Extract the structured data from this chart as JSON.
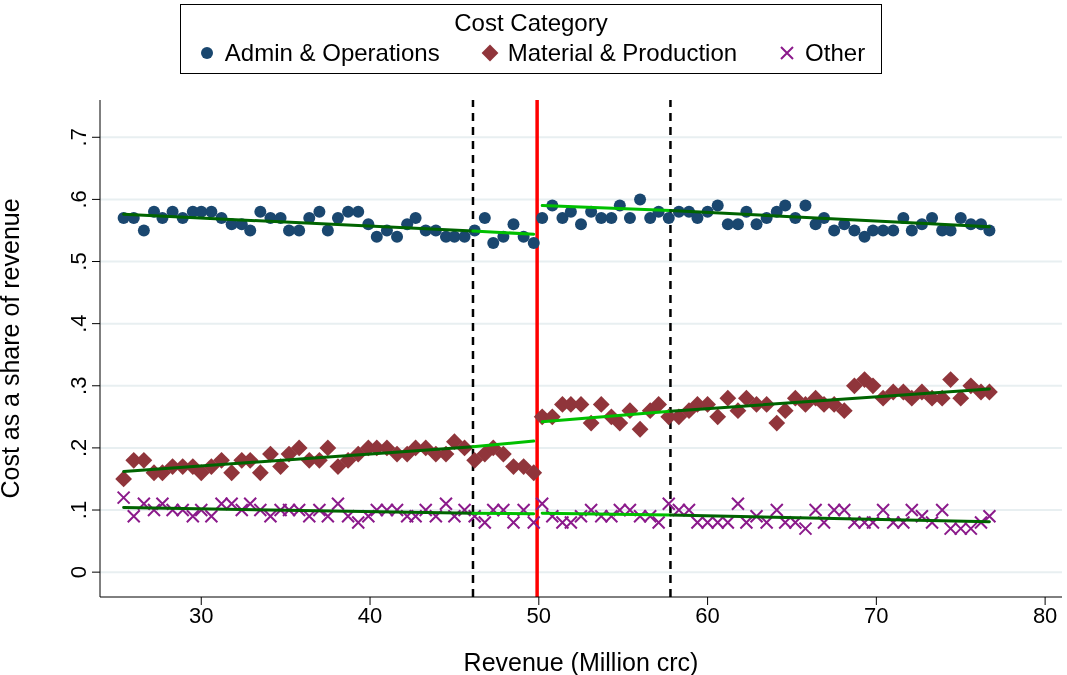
{
  "chart_data": {
    "type": "scatter",
    "xlabel": "Revenue (Million crc)",
    "ylabel": "Cost as a share of revenue",
    "legend_title": "Cost Category",
    "legend": "top",
    "grid": "y",
    "xlim": [
      24,
      81
    ],
    "xticks": [
      30,
      40,
      50,
      60,
      70,
      80
    ],
    "ylim": [
      -0.04,
      0.76
    ],
    "yticks": [
      {
        "value": 0,
        "label": "0"
      },
      {
        "value": 0.1,
        "label": ".1"
      },
      {
        "value": 0.2,
        "label": ".2"
      },
      {
        "value": 0.3,
        "label": ".3"
      },
      {
        "value": 0.4,
        "label": ".4"
      },
      {
        "value": 0.5,
        "label": ".5"
      },
      {
        "value": 0.6,
        "label": ".6"
      },
      {
        "value": 0.7,
        "label": ".7"
      }
    ],
    "x": [
      25.4,
      26.0,
      26.6,
      27.2,
      27.7,
      28.3,
      28.9,
      29.5,
      30.0,
      30.6,
      31.2,
      31.8,
      32.4,
      32.9,
      33.5,
      34.1,
      34.7,
      35.2,
      35.8,
      36.4,
      37.0,
      37.5,
      38.1,
      38.7,
      39.3,
      39.9,
      40.4,
      41.0,
      41.6,
      42.2,
      42.7,
      43.3,
      43.9,
      44.5,
      45.0,
      45.6,
      46.2,
      46.8,
      47.3,
      47.9,
      48.5,
      49.1,
      49.7,
      50.2,
      50.8,
      51.4,
      51.9,
      52.5,
      53.1,
      53.7,
      54.3,
      54.8,
      55.4,
      56.0,
      56.6,
      57.1,
      57.7,
      58.3,
      58.9,
      59.4,
      60.0,
      60.6,
      61.2,
      61.8,
      62.3,
      62.9,
      63.5,
      64.1,
      64.6,
      65.2,
      65.8,
      66.4,
      66.9,
      67.5,
      68.1,
      68.7,
      69.3,
      69.8,
      70.4,
      71.0,
      71.6,
      72.1,
      72.7,
      73.3,
      73.9,
      74.4,
      75.0,
      75.6,
      76.2,
      76.7
    ],
    "ref_lines": [
      {
        "axis": "x",
        "value": 46.1,
        "color": "#000000",
        "line_style": "dashed"
      },
      {
        "axis": "x",
        "value": 57.8,
        "color": "#000000",
        "line_style": "dashed"
      },
      {
        "axis": "x",
        "value": 49.9,
        "color": "#ff0000",
        "line_style": "solid"
      }
    ],
    "series": [
      {
        "name": "Admin & Operations",
        "color": "#1a476f",
        "marker": "circle",
        "values": [
          0.57,
          0.57,
          0.55,
          0.58,
          0.57,
          0.58,
          0.57,
          0.58,
          0.58,
          0.58,
          0.57,
          0.56,
          0.56,
          0.55,
          0.58,
          0.57,
          0.57,
          0.55,
          0.55,
          0.57,
          0.58,
          0.55,
          0.57,
          0.58,
          0.58,
          0.56,
          0.54,
          0.55,
          0.54,
          0.56,
          0.57,
          0.55,
          0.55,
          0.54,
          0.54,
          0.54,
          0.55,
          0.57,
          0.53,
          0.54,
          0.56,
          0.54,
          0.53,
          0.57,
          0.59,
          0.57,
          0.58,
          0.56,
          0.58,
          0.57,
          0.57,
          0.59,
          0.57,
          0.6,
          0.57,
          0.58,
          0.57,
          0.58,
          0.58,
          0.57,
          0.58,
          0.59,
          0.56,
          0.56,
          0.58,
          0.56,
          0.57,
          0.58,
          0.59,
          0.57,
          0.59,
          0.56,
          0.57,
          0.55,
          0.56,
          0.55,
          0.54,
          0.55,
          0.55,
          0.55,
          0.57,
          0.55,
          0.56,
          0.57,
          0.55,
          0.55,
          0.57,
          0.56,
          0.56,
          0.55
        ]
      },
      {
        "name": "Material & Production",
        "color": "#90353b",
        "marker": "diamond",
        "values": [
          0.15,
          0.18,
          0.18,
          0.16,
          0.16,
          0.17,
          0.17,
          0.17,
          0.16,
          0.17,
          0.18,
          0.16,
          0.18,
          0.18,
          0.16,
          0.19,
          0.17,
          0.19,
          0.2,
          0.18,
          0.18,
          0.2,
          0.17,
          0.18,
          0.19,
          0.2,
          0.2,
          0.2,
          0.19,
          0.19,
          0.2,
          0.2,
          0.19,
          0.19,
          0.21,
          0.2,
          0.18,
          0.19,
          0.2,
          0.19,
          0.17,
          0.17,
          0.16,
          0.25,
          0.25,
          0.27,
          0.27,
          0.27,
          0.24,
          0.27,
          0.25,
          0.24,
          0.26,
          0.23,
          0.26,
          0.27,
          0.25,
          0.25,
          0.26,
          0.27,
          0.27,
          0.25,
          0.28,
          0.26,
          0.28,
          0.27,
          0.27,
          0.24,
          0.26,
          0.28,
          0.27,
          0.28,
          0.27,
          0.27,
          0.26,
          0.3,
          0.31,
          0.3,
          0.28,
          0.29,
          0.29,
          0.28,
          0.29,
          0.28,
          0.28,
          0.31,
          0.28,
          0.3,
          0.29,
          0.29
        ]
      },
      {
        "name": "Other",
        "color": "#8b1a8b",
        "marker": "cross",
        "values": [
          0.12,
          0.09,
          0.11,
          0.1,
          0.11,
          0.1,
          0.1,
          0.09,
          0.1,
          0.09,
          0.11,
          0.11,
          0.1,
          0.11,
          0.1,
          0.09,
          0.1,
          0.1,
          0.1,
          0.09,
          0.1,
          0.09,
          0.11,
          0.09,
          0.08,
          0.09,
          0.1,
          0.1,
          0.1,
          0.09,
          0.09,
          0.1,
          0.09,
          0.11,
          0.09,
          0.1,
          0.09,
          0.08,
          0.1,
          0.1,
          0.08,
          0.1,
          0.08,
          0.11,
          0.09,
          0.08,
          0.08,
          0.09,
          0.1,
          0.09,
          0.09,
          0.1,
          0.1,
          0.09,
          0.09,
          0.08,
          0.11,
          0.1,
          0.1,
          0.08,
          0.08,
          0.08,
          0.08,
          0.11,
          0.08,
          0.09,
          0.08,
          0.1,
          0.08,
          0.08,
          0.07,
          0.1,
          0.08,
          0.1,
          0.1,
          0.08,
          0.08,
          0.08,
          0.1,
          0.08,
          0.08,
          0.1,
          0.09,
          0.08,
          0.1,
          0.07,
          0.07,
          0.07,
          0.08,
          0.09
        ]
      },
      {
        "type": "line",
        "color": "#006400",
        "x": [
          25.4,
          46.1
        ],
        "values": [
          0.576,
          0.549
        ]
      },
      {
        "type": "line",
        "color": "#00c000",
        "x": [
          46.1,
          49.7
        ],
        "values": [
          0.549,
          0.544
        ]
      },
      {
        "type": "line",
        "color": "#00c000",
        "x": [
          50.2,
          57.8
        ],
        "values": [
          0.59,
          0.582
        ]
      },
      {
        "type": "line",
        "color": "#006400",
        "x": [
          57.8,
          76.7
        ],
        "values": [
          0.582,
          0.556
        ]
      },
      {
        "type": "line",
        "color": "#006400",
        "x": [
          25.4,
          46.1
        ],
        "values": [
          0.162,
          0.202
        ]
      },
      {
        "type": "line",
        "color": "#00c000",
        "x": [
          46.1,
          49.7
        ],
        "values": [
          0.202,
          0.211
        ]
      },
      {
        "type": "line",
        "color": "#00c000",
        "x": [
          50.2,
          57.8
        ],
        "values": [
          0.242,
          0.259
        ]
      },
      {
        "type": "line",
        "color": "#006400",
        "x": [
          57.8,
          76.7
        ],
        "values": [
          0.259,
          0.295
        ]
      },
      {
        "type": "line",
        "color": "#006400",
        "x": [
          25.4,
          46.1
        ],
        "values": [
          0.104,
          0.095
        ]
      },
      {
        "type": "line",
        "color": "#00c000",
        "x": [
          46.1,
          49.7
        ],
        "values": [
          0.095,
          0.094
        ]
      },
      {
        "type": "line",
        "color": "#00c000",
        "x": [
          50.2,
          57.8
        ],
        "values": [
          0.095,
          0.092
        ]
      },
      {
        "type": "line",
        "color": "#006400",
        "x": [
          57.8,
          76.7
        ],
        "values": [
          0.092,
          0.081
        ]
      }
    ]
  }
}
